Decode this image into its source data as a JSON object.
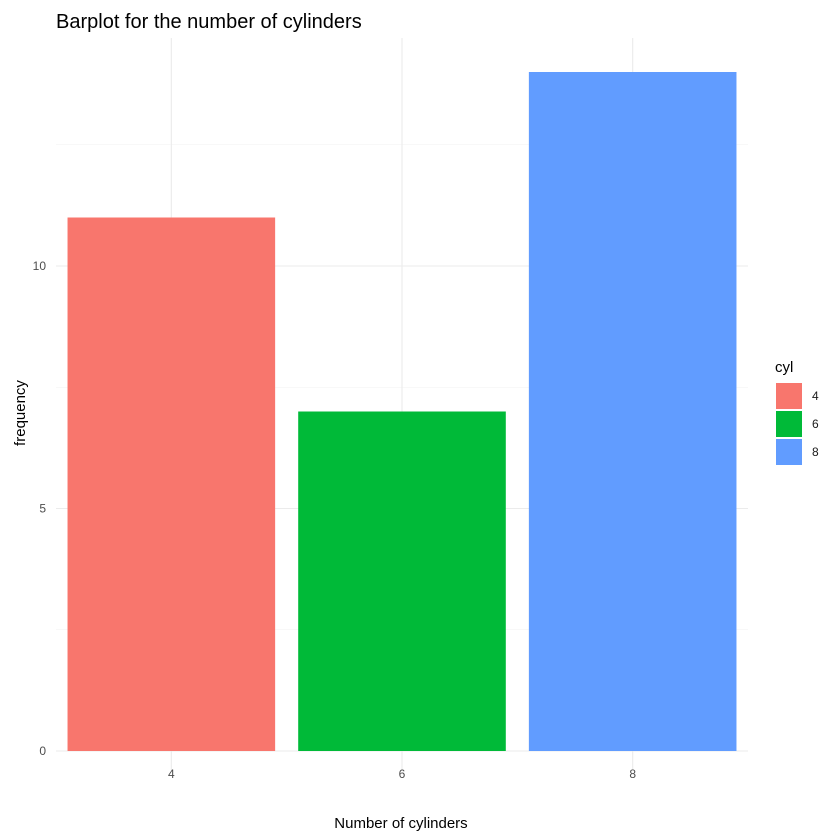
{
  "chart_data": {
    "type": "bar",
    "title": "Barplot for the number of cylinders",
    "xlabel": "Number of cylinders",
    "ylabel": "frequency",
    "categories": [
      "4",
      "6",
      "8"
    ],
    "values": [
      11,
      7,
      14
    ],
    "colors": [
      "#F8766D",
      "#00BA38",
      "#619CFF"
    ],
    "ylim": [
      0,
      14.7
    ],
    "yticks": [
      0,
      5,
      10
    ],
    "yminor": [
      2.5,
      7.5,
      12.5
    ],
    "grid": true,
    "legend": {
      "title": "cyl",
      "entries": [
        "4",
        "6",
        "8"
      ],
      "placement": "right"
    }
  }
}
